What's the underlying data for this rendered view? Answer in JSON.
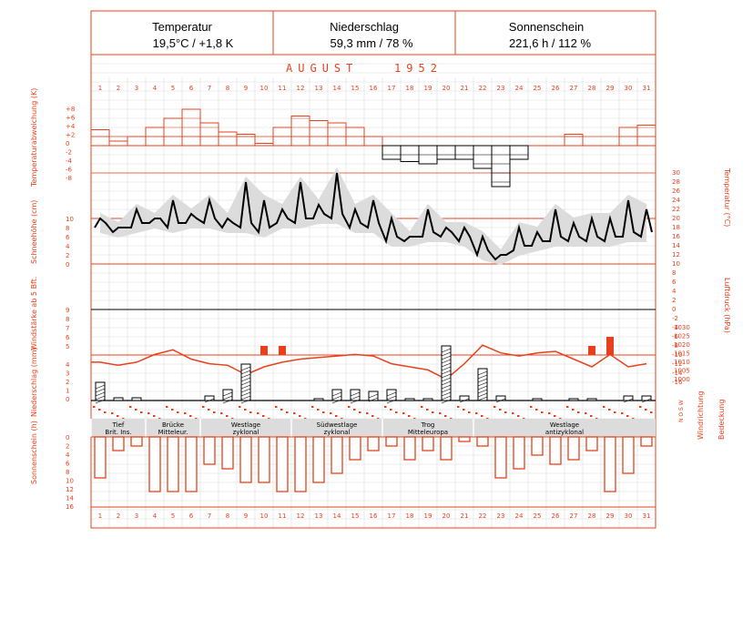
{
  "header": {
    "temp_title": "Temperatur",
    "temp_value": "19,5°C / +1,8 K",
    "precip_title": "Niederschlag",
    "precip_value": "59,3 mm / 78 %",
    "sun_title": "Sonnenschein",
    "sun_value": "221,6 h / 112 %"
  },
  "month_title": "AUGUST   1952",
  "days": [
    "1",
    "2",
    "3",
    "4",
    "5",
    "6",
    "7",
    "8",
    "9",
    "10",
    "11",
    "12",
    "13",
    "14",
    "15",
    "16",
    "17",
    "18",
    "19",
    "20",
    "21",
    "22",
    "23",
    "24",
    "25",
    "26",
    "27",
    "28",
    "29",
    "30",
    "31"
  ],
  "axis_labels": {
    "temp_dev": "Temperaturabweichung (K)",
    "snow": "Schneehöhe (cm)",
    "wind": "Windstärke ab 5 Bft.",
    "precip": "Niederschlag (mm)",
    "sun": "Sonnenschein (h)",
    "temp": "Temperatur (°C)",
    "pressure": "Luftdruck (hPa)",
    "wind_dir": "Windrichtung",
    "cloud": "Bedeckung",
    "wind_dir_ticks": "N O S W"
  },
  "ticks": {
    "temp_dev": [
      "+8",
      "+6",
      "+4",
      "+2",
      "0",
      "-2",
      "-4",
      "-6",
      "-8"
    ],
    "snow": [
      "10",
      "8",
      "6",
      "4",
      "2",
      "0"
    ],
    "wind": [
      "9",
      "8",
      "7",
      "6",
      "5"
    ],
    "precip": [
      "4",
      "3",
      "2",
      "1",
      "0"
    ],
    "sun": [
      "0",
      "2",
      "4",
      "6",
      "8",
      "10",
      "12",
      "14",
      "16"
    ],
    "temp": [
      "30",
      "28",
      "26",
      "24",
      "22",
      "20",
      "18",
      "16",
      "14",
      "12",
      "10",
      "8",
      "6",
      "4",
      "2",
      "0",
      "-2",
      "-4",
      "-6",
      "-8",
      "-10",
      "-12",
      "-14",
      "-16"
    ],
    "pressure": [
      "1030",
      "1025",
      "1020",
      "1015",
      "1010",
      "1005",
      "1000"
    ]
  },
  "weather_types": [
    {
      "name": "Tief Brit. Ins.",
      "line1": "Tief",
      "line2": "Brit. Ins."
    },
    {
      "name": "Brücke Mitteleur.",
      "line1": "Brücke",
      "line2": "Mitteleur."
    },
    {
      "name": "Westlage zyklonal",
      "line1": "Westlage",
      "line2": "zyklonal"
    },
    {
      "name": "Südwestlage zyklonal",
      "line1": "Südwestlage",
      "line2": "zyklonal"
    },
    {
      "name": "Trog Mitteleuropa",
      "line1": "Trog",
      "line2": "Mitteleuropa"
    },
    {
      "name": "Westlage antizyklonal",
      "line1": "Westlage",
      "line2": "antizyklonal"
    }
  ],
  "annotation_19": "19",
  "colors": {
    "red": "#e8401c",
    "black": "#000000",
    "grid": "#dddddd",
    "band": "#dcdcdc"
  },
  "chart_data": {
    "type": "line",
    "title": "AUGUST 1952",
    "days": [
      1,
      2,
      3,
      4,
      5,
      6,
      7,
      8,
      9,
      10,
      11,
      12,
      13,
      14,
      15,
      16,
      17,
      18,
      19,
      20,
      21,
      22,
      23,
      24,
      25,
      26,
      27,
      28,
      29,
      30,
      31
    ],
    "temp_deviation_K": [
      3.5,
      1,
      2,
      4,
      6,
      8,
      5,
      3,
      2.5,
      0.5,
      4,
      6.5,
      5.5,
      5,
      4,
      2,
      -3,
      -3.5,
      -4,
      -3,
      -3,
      -5,
      -9,
      -3,
      0,
      0,
      2.5,
      0,
      0,
      4,
      4.5
    ],
    "temp_max_hourly_C": [
      20,
      18,
      22,
      20,
      24,
      21,
      24,
      20,
      28,
      24,
      22,
      28,
      23,
      30,
      22,
      24,
      20,
      16,
      22,
      18,
      18,
      16,
      12,
      18,
      17,
      22,
      19,
      20,
      20,
      24,
      22
    ],
    "temp_min_hourly_C": [
      18,
      17,
      18,
      19,
      18,
      19,
      19,
      18,
      18,
      17,
      19,
      19,
      20,
      20,
      18,
      18,
      15,
      15,
      16,
      16,
      15,
      12,
      11,
      13,
      14,
      15,
      15,
      15,
      15,
      16,
      16
    ],
    "precipitation_mm": [
      2,
      0.3,
      0.3,
      0,
      0,
      0,
      0.5,
      1.2,
      4,
      0,
      0,
      0,
      0.2,
      1.2,
      1.2,
      1,
      1.2,
      0.2,
      0.2,
      6,
      0.5,
      3.5,
      0.5,
      0,
      0.2,
      0,
      0.2,
      0.2,
      0,
      0.5,
      0.5
    ],
    "wind_bft_ge5": [
      0,
      0,
      0,
      0,
      0,
      0,
      0,
      0,
      0,
      5,
      5,
      0,
      0,
      0,
      0,
      0,
      0,
      0,
      0,
      0,
      0,
      0,
      0,
      0,
      0,
      0,
      0,
      5,
      6,
      0,
      0
    ],
    "pressure_hPa": [
      1013,
      1011,
      1013,
      1018,
      1021,
      1015,
      1012,
      1011,
      1005,
      1010,
      1013,
      1015,
      1016,
      1017,
      1018,
      1017,
      1012,
      1010,
      1008,
      1002,
      1012,
      1024,
      1019,
      1017,
      1019,
      1020,
      1015,
      1010,
      1018,
      1010,
      1012
    ],
    "sunshine_h": [
      9,
      3,
      2,
      12,
      12,
      12,
      6,
      7,
      10,
      10,
      12,
      12,
      10,
      8,
      5,
      3,
      2,
      5,
      3,
      5,
      1,
      2,
      9,
      7,
      4,
      6,
      5,
      3,
      12,
      8,
      2
    ],
    "ylim_temp_dev": [
      -8,
      8
    ],
    "ylim_temp": [
      -16,
      30
    ],
    "ylim_pressure": [
      1000,
      1030
    ],
    "ylim_sun": [
      0,
      16
    ]
  }
}
